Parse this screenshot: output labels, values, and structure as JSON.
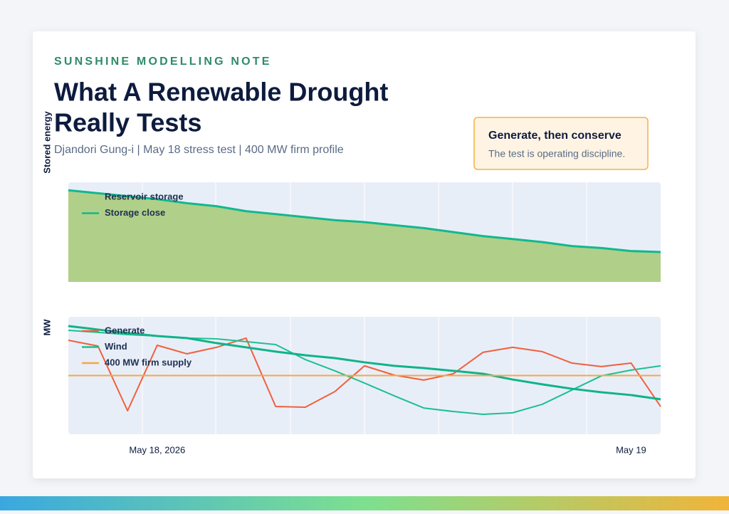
{
  "eyebrow": "SUNSHINE MODELLING NOTE",
  "title_lines": [
    "What A Renewable Drought",
    "Really Tests"
  ],
  "subtitle": "Djandori Gung-i | May 18 stress test | 400 MW firm profile",
  "callout": {
    "title": "Generate, then conserve",
    "text": "The test is operating discipline."
  },
  "chart_data": [
    {
      "type": "line",
      "y_label": "Stored energy",
      "categories": [
        null,
        null,
        null,
        null,
        null,
        null,
        null,
        null,
        null,
        null,
        null,
        null,
        null,
        null,
        null,
        null,
        null,
        null,
        null,
        null,
        null
      ],
      "ylim": [
        0,
        100
      ],
      "series": [
        {
          "name": "Reservoir storage",
          "type": "area",
          "color": "#b0cf89",
          "values": [
            92,
            89,
            86,
            83,
            79,
            76,
            71,
            68,
            65,
            62,
            60,
            57,
            54,
            50,
            46,
            43,
            40,
            36,
            34,
            31,
            30
          ]
        },
        {
          "name": "Storage close",
          "type": "line",
          "color": "#12b88e",
          "values": [
            92,
            89,
            86,
            83,
            79,
            76,
            71,
            68,
            65,
            62,
            60,
            57,
            54,
            50,
            46,
            43,
            40,
            36,
            34,
            31,
            30
          ]
        }
      ]
    },
    {
      "type": "line",
      "y_label": "MW",
      "categories": [
        null,
        null,
        null,
        "May 18, 2026",
        null,
        null,
        null,
        null,
        null,
        null,
        null,
        null,
        null,
        null,
        null,
        null,
        null,
        null,
        null,
        "May 19",
        null
      ],
      "ylim": [
        0,
        800
      ],
      "series": [
        {
          "name": "Generate",
          "type": "line",
          "color": "#f0603c",
          "values": [
            640,
            601,
            160,
            606,
            548,
            592,
            655,
            189,
            184,
            291,
            466,
            403,
            369,
            412,
            558,
            592,
            563,
            485,
            461,
            485,
            189
          ]
        },
        {
          "name": "Wind",
          "type": "line",
          "color": "#1cc08f",
          "values": [
            708,
            694,
            679,
            669,
            655,
            650,
            631,
            611,
            509,
            432,
            349,
            262,
            179,
            155,
            136,
            146,
            204,
            301,
            398,
            437,
            466
          ]
        },
        {
          "type": "line",
          "color": "#10b38a",
          "values": [
            737,
            713,
            689,
            669,
            655,
            621,
            592,
            563,
            538,
            519,
            490,
            466,
            451,
            432,
            412,
            373,
            340,
            310,
            286,
            267,
            238
          ]
        },
        {
          "name": "400 MW firm supply",
          "type": "line",
          "color": "#f5a742",
          "values": [
            400,
            400,
            400,
            400,
            400,
            400,
            400,
            400,
            400,
            400,
            400,
            400,
            400,
            400,
            400,
            400,
            400,
            400,
            400,
            400,
            400
          ]
        }
      ]
    }
  ]
}
